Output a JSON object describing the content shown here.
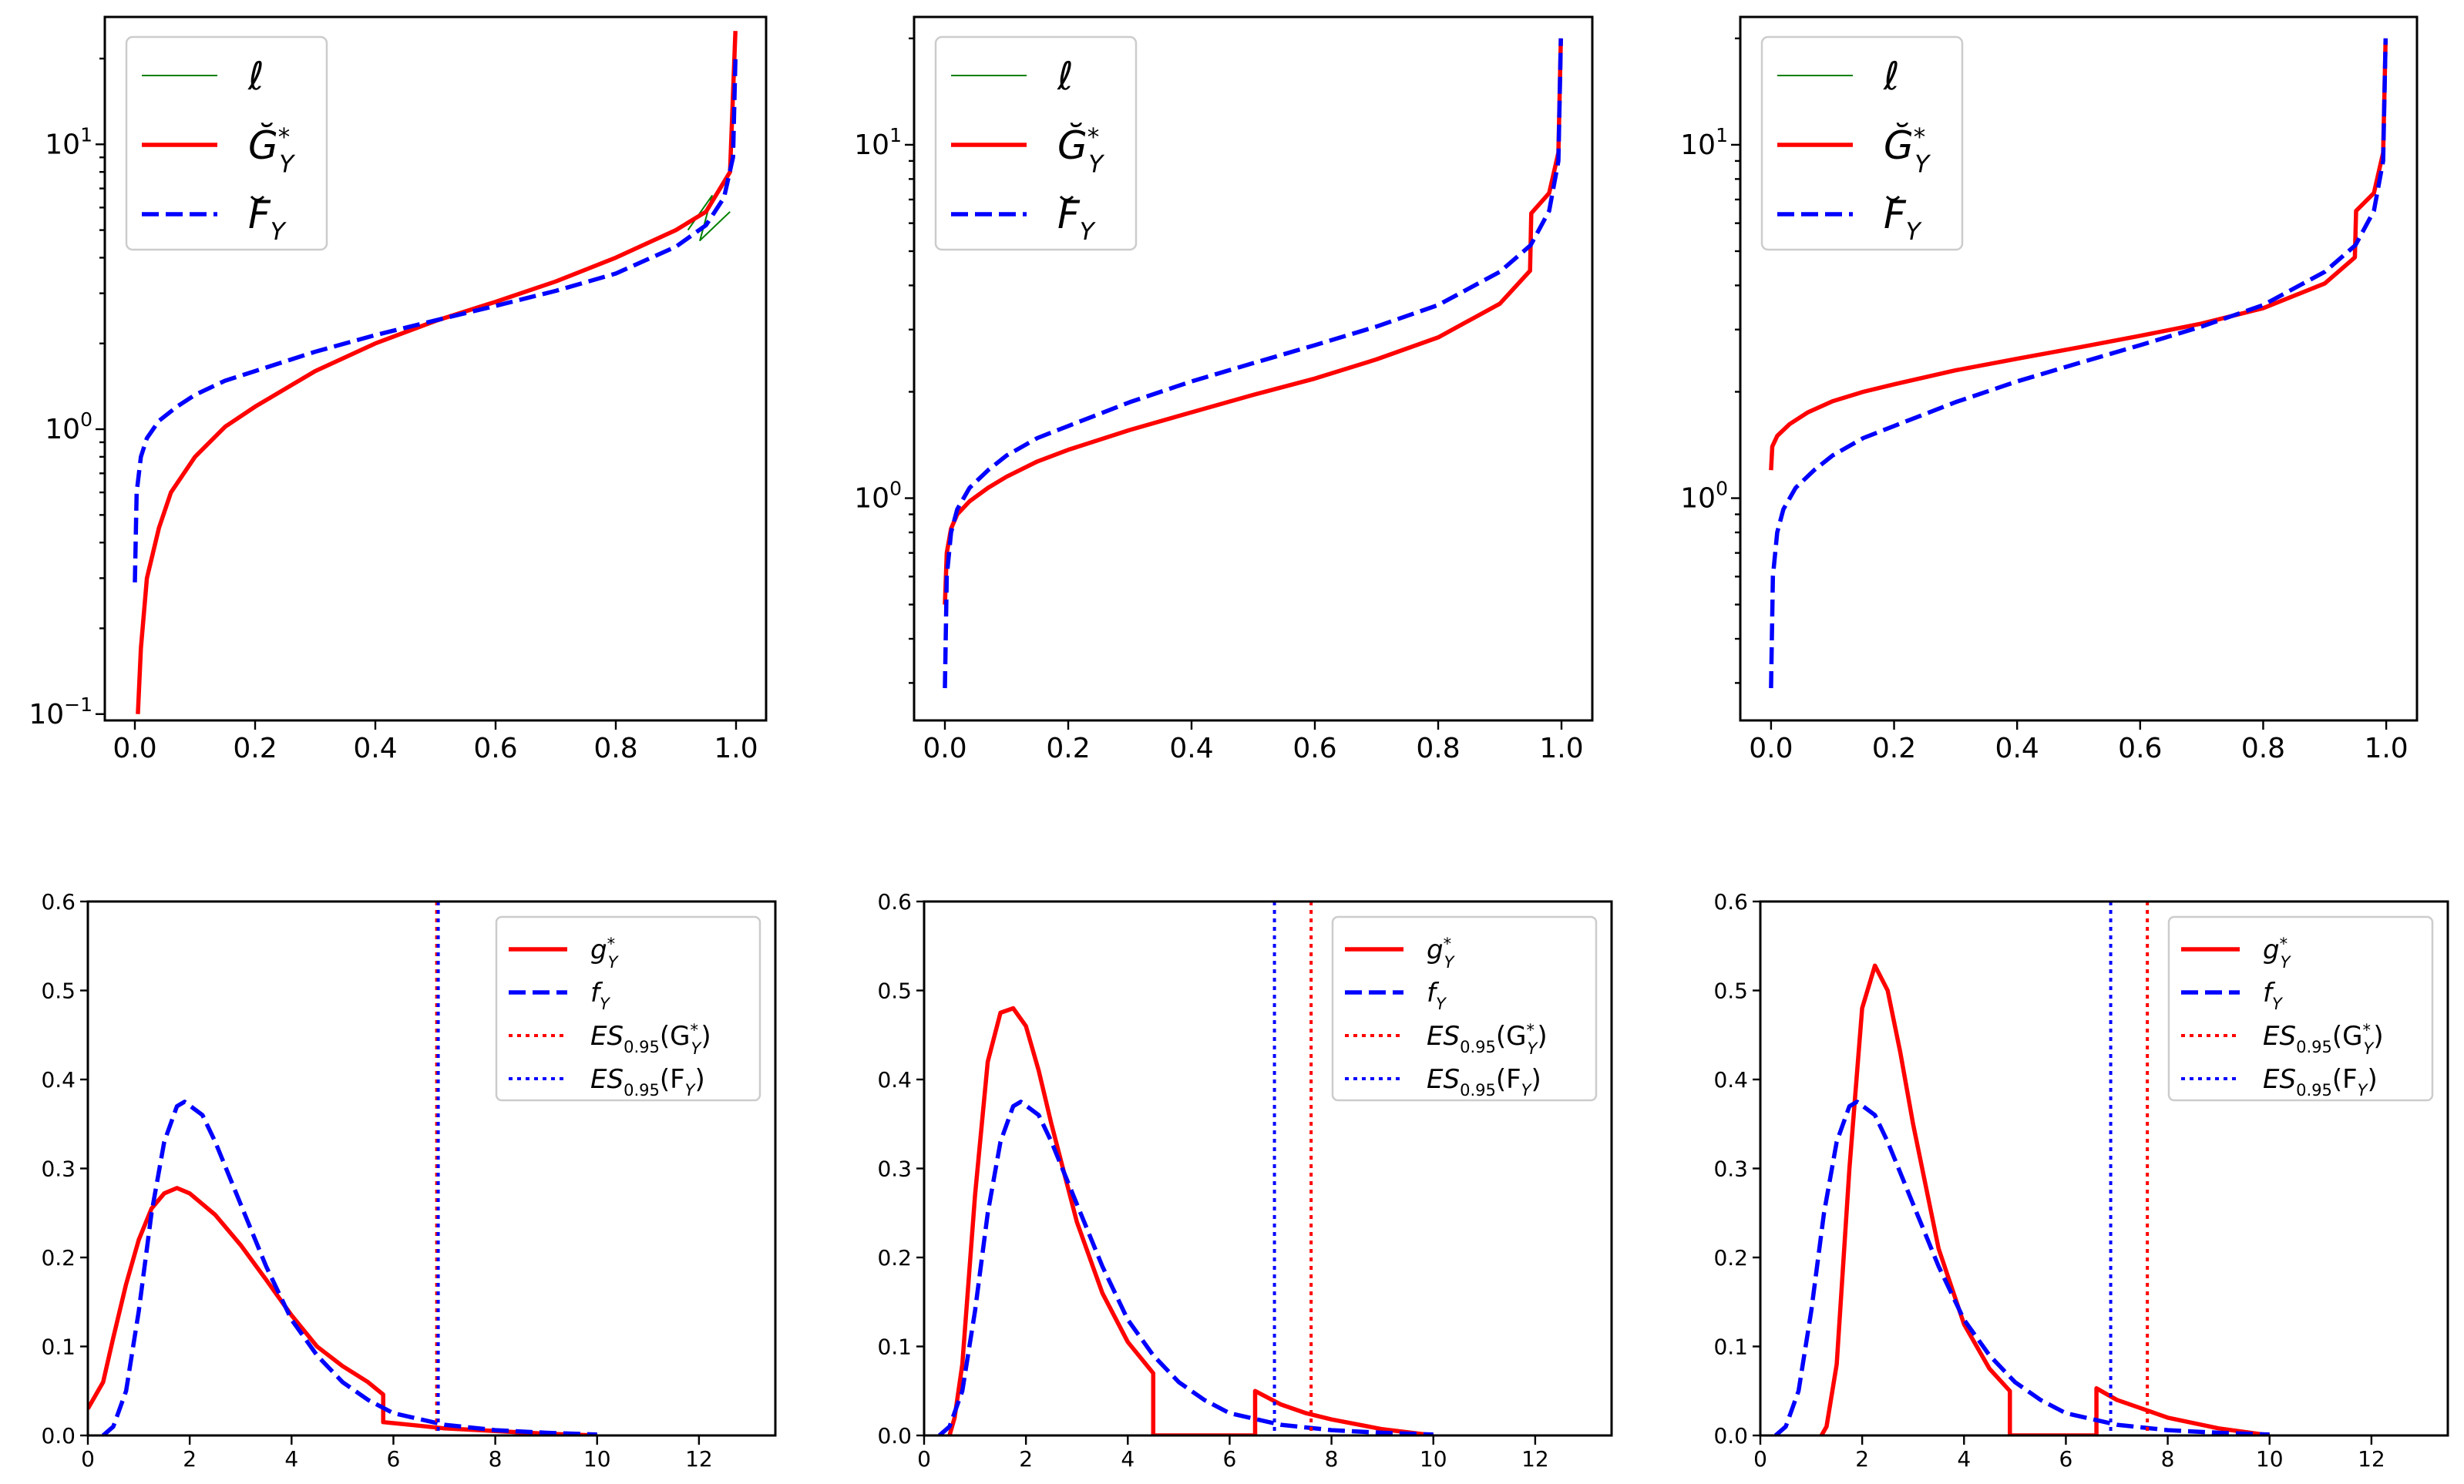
{
  "chart_data": [
    {
      "type": "line",
      "position": "top-left",
      "xlim": [
        -0.05,
        1.05
      ],
      "ylim": [
        0.095,
        28
      ],
      "yscale": "log",
      "xticks": [
        "0.0",
        "0.2",
        "0.4",
        "0.6",
        "0.8",
        "1.0"
      ],
      "yticks": [
        {
          "base": "10",
          "exp": "−1",
          "value": 0.1
        },
        {
          "base": "10",
          "exp": "0",
          "value": 1
        },
        {
          "base": "10",
          "exp": "1",
          "value": 10
        }
      ],
      "legend": {
        "loc": "upper-left",
        "entries": [
          "ℓ",
          "Ğ*Y",
          "F̆Y"
        ]
      },
      "series": [
        {
          "name": "ℓ",
          "color": "#008000",
          "style": "solid",
          "x": [
            0.92,
            0.96,
            0.94,
            0.99
          ],
          "y": [
            5.0,
            6.6,
            4.6,
            5.8
          ]
        },
        {
          "name": "Ğ*Y",
          "color": "#ff0000",
          "style": "solid",
          "x": [
            0.005,
            0.01,
            0.02,
            0.04,
            0.06,
            0.1,
            0.15,
            0.2,
            0.3,
            0.4,
            0.5,
            0.6,
            0.7,
            0.8,
            0.9,
            0.95,
            0.99,
            0.999
          ],
          "y": [
            0.1,
            0.17,
            0.3,
            0.45,
            0.6,
            0.8,
            1.02,
            1.2,
            1.6,
            2.0,
            2.4,
            2.8,
            3.3,
            4.0,
            5.0,
            5.8,
            8.0,
            25.0
          ]
        },
        {
          "name": "F̆Y",
          "color": "#0000ff",
          "style": "dashed",
          "x": [
            0.0,
            0.003,
            0.01,
            0.02,
            0.04,
            0.07,
            0.1,
            0.15,
            0.2,
            0.3,
            0.4,
            0.5,
            0.6,
            0.7,
            0.8,
            0.9,
            0.95,
            0.98,
            0.995,
            0.999
          ],
          "y": [
            0.29,
            0.6,
            0.8,
            0.93,
            1.07,
            1.2,
            1.32,
            1.48,
            1.6,
            1.87,
            2.14,
            2.41,
            2.71,
            3.06,
            3.52,
            4.37,
            5.2,
            6.5,
            9.0,
            20.0
          ]
        }
      ]
    },
    {
      "type": "line",
      "position": "top-middle",
      "xlim": [
        -0.05,
        1.05
      ],
      "ylim": [
        0.235,
        23
      ],
      "yscale": "log",
      "xticks": [
        "0.0",
        "0.2",
        "0.4",
        "0.6",
        "0.8",
        "1.0"
      ],
      "yticks": [
        {
          "base": "10",
          "exp": "0",
          "value": 1
        },
        {
          "base": "10",
          "exp": "1",
          "value": 10
        }
      ],
      "legend": {
        "loc": "upper-left",
        "entries": [
          "ℓ",
          "Ğ*Y",
          "F̆Y"
        ]
      },
      "series": [
        {
          "name": "ℓ",
          "color": "#008000",
          "style": "solid",
          "x": [],
          "y": []
        },
        {
          "name": "Ğ*Y",
          "color": "#ff0000",
          "style": "solid",
          "x": [
            0.0,
            0.003,
            0.01,
            0.02,
            0.04,
            0.07,
            0.1,
            0.15,
            0.2,
            0.3,
            0.4,
            0.5,
            0.6,
            0.7,
            0.8,
            0.9,
            0.949,
            0.951,
            0.98,
            0.995,
            0.999
          ],
          "y": [
            0.5,
            0.7,
            0.82,
            0.9,
            0.98,
            1.07,
            1.15,
            1.27,
            1.37,
            1.56,
            1.75,
            1.96,
            2.18,
            2.47,
            2.85,
            3.55,
            4.4,
            6.4,
            7.3,
            9.5,
            20.0
          ]
        },
        {
          "name": "F̆Y",
          "color": "#0000ff",
          "style": "dashed",
          "x": [
            0.0,
            0.003,
            0.01,
            0.02,
            0.04,
            0.07,
            0.1,
            0.15,
            0.2,
            0.3,
            0.4,
            0.5,
            0.6,
            0.7,
            0.8,
            0.9,
            0.95,
            0.98,
            0.995,
            0.999
          ],
          "y": [
            0.29,
            0.6,
            0.8,
            0.93,
            1.07,
            1.2,
            1.32,
            1.48,
            1.6,
            1.87,
            2.14,
            2.41,
            2.71,
            3.06,
            3.52,
            4.37,
            5.2,
            6.5,
            9.0,
            20.0
          ]
        }
      ]
    },
    {
      "type": "line",
      "position": "top-right",
      "xlim": [
        -0.05,
        1.05
      ],
      "ylim": [
        0.235,
        23
      ],
      "yscale": "log",
      "xticks": [
        "0.0",
        "0.2",
        "0.4",
        "0.6",
        "0.8",
        "1.0"
      ],
      "yticks": [
        {
          "base": "10",
          "exp": "0",
          "value": 1
        },
        {
          "base": "10",
          "exp": "1",
          "value": 10
        }
      ],
      "legend": {
        "loc": "upper-left",
        "entries": [
          "ℓ",
          "Ğ*Y",
          "F̆Y"
        ]
      },
      "series": [
        {
          "name": "ℓ",
          "color": "#008000",
          "style": "solid",
          "x": [],
          "y": []
        },
        {
          "name": "Ğ*Y",
          "color": "#ff0000",
          "style": "solid",
          "x": [
            0.0,
            0.002,
            0.01,
            0.03,
            0.06,
            0.1,
            0.15,
            0.2,
            0.3,
            0.4,
            0.5,
            0.6,
            0.7,
            0.8,
            0.9,
            0.949,
            0.951,
            0.98,
            0.995,
            0.999
          ],
          "y": [
            1.2,
            1.4,
            1.5,
            1.62,
            1.75,
            1.88,
            2.0,
            2.1,
            2.3,
            2.48,
            2.67,
            2.88,
            3.12,
            3.45,
            4.05,
            4.8,
            6.5,
            7.3,
            9.5,
            20.0
          ]
        },
        {
          "name": "F̆Y",
          "color": "#0000ff",
          "style": "dashed",
          "x": [
            0.0,
            0.003,
            0.01,
            0.02,
            0.04,
            0.07,
            0.1,
            0.15,
            0.2,
            0.3,
            0.4,
            0.5,
            0.6,
            0.7,
            0.8,
            0.9,
            0.95,
            0.98,
            0.995,
            0.999
          ],
          "y": [
            0.29,
            0.6,
            0.8,
            0.93,
            1.07,
            1.2,
            1.32,
            1.48,
            1.6,
            1.87,
            2.14,
            2.41,
            2.71,
            3.06,
            3.52,
            4.37,
            5.2,
            6.5,
            9.0,
            20.0
          ]
        }
      ]
    },
    {
      "type": "line",
      "position": "bottom-left",
      "xlim": [
        0,
        13.5
      ],
      "ylim": [
        0,
        0.6
      ],
      "xticks": [
        "0",
        "2",
        "4",
        "6",
        "8",
        "10",
        "12"
      ],
      "yticks": [
        "0.0",
        "0.1",
        "0.2",
        "0.3",
        "0.4",
        "0.5",
        "0.6"
      ],
      "legend": {
        "loc": "upper-right",
        "entries": [
          "g*Y",
          "fY",
          "ES0.95(G*Y)",
          "ES0.95(FY)"
        ]
      },
      "series": [
        {
          "name": "g*Y",
          "color": "#ff0000",
          "style": "solid",
          "x": [
            0.0,
            0.1,
            0.3,
            0.5,
            0.75,
            1.0,
            1.25,
            1.5,
            1.75,
            2.0,
            2.5,
            3.0,
            3.5,
            4.0,
            4.5,
            5.0,
            5.5,
            5.8,
            5.8,
            6.5,
            7.0,
            8.0,
            9.0,
            10.0
          ],
          "y": [
            0.03,
            0.04,
            0.06,
            0.11,
            0.17,
            0.22,
            0.255,
            0.272,
            0.278,
            0.272,
            0.248,
            0.214,
            0.175,
            0.135,
            0.1,
            0.078,
            0.06,
            0.046,
            0.015,
            0.011,
            0.008,
            0.005,
            0.002,
            0.0
          ]
        },
        {
          "name": "fY",
          "color": "#0000ff",
          "style": "dashed",
          "x": [
            0.3,
            0.5,
            0.75,
            1.0,
            1.25,
            1.5,
            1.75,
            1.9,
            2.25,
            2.5,
            3.0,
            3.5,
            4.0,
            4.5,
            5.0,
            5.5,
            6.0,
            7.0,
            8.0,
            9.0,
            10.0
          ],
          "y": [
            0.0,
            0.01,
            0.05,
            0.14,
            0.25,
            0.33,
            0.37,
            0.375,
            0.36,
            0.33,
            0.26,
            0.19,
            0.13,
            0.09,
            0.06,
            0.04,
            0.025,
            0.012,
            0.006,
            0.003,
            0.001
          ]
        },
        {
          "name": "ES0.95(G*Y)",
          "color": "#ff0000",
          "style": "dotted",
          "vline": 6.85
        },
        {
          "name": "ES0.95(FY)",
          "color": "#0000ff",
          "style": "dotted",
          "vline": 6.88
        }
      ]
    },
    {
      "type": "line",
      "position": "bottom-middle",
      "xlim": [
        0,
        13.5
      ],
      "ylim": [
        0,
        0.6
      ],
      "xticks": [
        "0",
        "2",
        "4",
        "6",
        "8",
        "10",
        "12"
      ],
      "yticks": [
        "0.0",
        "0.1",
        "0.2",
        "0.3",
        "0.4",
        "0.5",
        "0.6"
      ],
      "legend": {
        "loc": "upper-right",
        "entries": [
          "g*Y",
          "fY",
          "ES0.95(G*Y)",
          "ES0.95(FY)"
        ]
      },
      "series": [
        {
          "name": "g*Y",
          "color": "#ff0000",
          "style": "solid",
          "x": [
            0.5,
            0.6,
            0.75,
            1.0,
            1.25,
            1.5,
            1.75,
            2.0,
            2.25,
            2.5,
            3.0,
            3.5,
            4.0,
            4.5,
            4.5,
            6.5,
            6.5,
            7.0,
            7.5,
            8.0,
            9.0,
            10.0
          ],
          "y": [
            0.0,
            0.02,
            0.08,
            0.27,
            0.42,
            0.475,
            0.48,
            0.46,
            0.41,
            0.35,
            0.24,
            0.16,
            0.105,
            0.07,
            0.0,
            0.0,
            0.05,
            0.035,
            0.025,
            0.018,
            0.007,
            0.0
          ]
        },
        {
          "name": "fY",
          "color": "#0000ff",
          "style": "dashed",
          "x": [
            0.3,
            0.5,
            0.75,
            1.0,
            1.25,
            1.5,
            1.75,
            1.9,
            2.25,
            2.5,
            3.0,
            3.5,
            4.0,
            4.5,
            5.0,
            5.5,
            6.0,
            7.0,
            8.0,
            9.0,
            10.0
          ],
          "y": [
            0.0,
            0.01,
            0.05,
            0.14,
            0.25,
            0.33,
            0.37,
            0.375,
            0.36,
            0.33,
            0.26,
            0.19,
            0.13,
            0.09,
            0.06,
            0.04,
            0.025,
            0.012,
            0.006,
            0.003,
            0.001
          ]
        },
        {
          "name": "ES0.95(G*Y)",
          "color": "#ff0000",
          "style": "dotted",
          "vline": 7.6
        },
        {
          "name": "ES0.95(FY)",
          "color": "#0000ff",
          "style": "dotted",
          "vline": 6.88
        }
      ]
    },
    {
      "type": "line",
      "position": "bottom-right",
      "xlim": [
        0,
        13.5
      ],
      "ylim": [
        0,
        0.6
      ],
      "xticks": [
        "0",
        "2",
        "4",
        "6",
        "8",
        "10",
        "12"
      ],
      "yticks": [
        "0.0",
        "0.1",
        "0.2",
        "0.3",
        "0.4",
        "0.5",
        "0.6"
      ],
      "legend": {
        "loc": "upper-right",
        "entries": [
          "g*Y",
          "fY",
          "ES0.95(G*Y)",
          "ES0.95(FY)"
        ]
      },
      "series": [
        {
          "name": "g*Y",
          "color": "#ff0000",
          "style": "solid",
          "x": [
            1.2,
            1.3,
            1.5,
            1.75,
            2.0,
            2.25,
            2.5,
            2.75,
            3.0,
            3.5,
            4.0,
            4.5,
            4.9,
            4.9,
            6.6,
            6.6,
            7.0,
            7.5,
            8.0,
            9.0,
            10.0
          ],
          "y": [
            0.0,
            0.01,
            0.08,
            0.3,
            0.48,
            0.528,
            0.5,
            0.43,
            0.35,
            0.21,
            0.125,
            0.075,
            0.05,
            0.0,
            0.0,
            0.053,
            0.04,
            0.03,
            0.02,
            0.008,
            0.0
          ]
        },
        {
          "name": "fY",
          "color": "#0000ff",
          "style": "dashed",
          "x": [
            0.3,
            0.5,
            0.75,
            1.0,
            1.25,
            1.5,
            1.75,
            1.9,
            2.25,
            2.5,
            3.0,
            3.5,
            4.0,
            4.5,
            5.0,
            5.5,
            6.0,
            7.0,
            8.0,
            9.0,
            10.0
          ],
          "y": [
            0.0,
            0.01,
            0.05,
            0.14,
            0.25,
            0.33,
            0.37,
            0.375,
            0.36,
            0.33,
            0.26,
            0.19,
            0.13,
            0.09,
            0.06,
            0.04,
            0.025,
            0.012,
            0.006,
            0.003,
            0.001
          ]
        },
        {
          "name": "ES0.95(G*Y)",
          "color": "#ff0000",
          "style": "dotted",
          "vline": 7.6
        },
        {
          "name": "ES0.95(FY)",
          "color": "#0000ff",
          "style": "dotted",
          "vline": 6.88
        }
      ]
    }
  ]
}
